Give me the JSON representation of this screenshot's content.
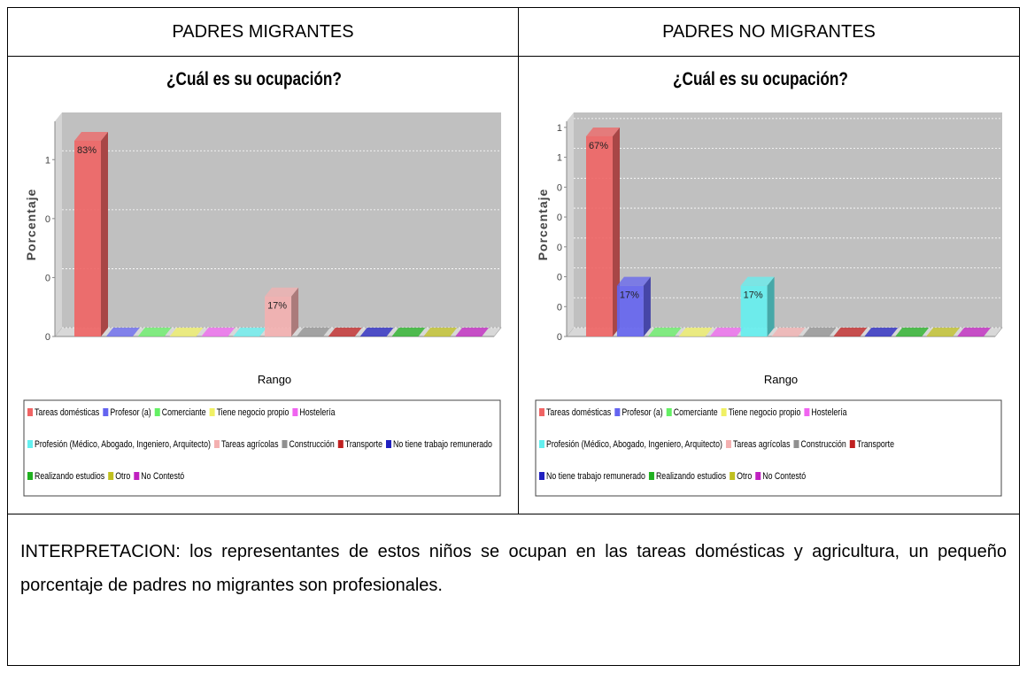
{
  "table": {
    "headers": [
      "PADRES MIGRANTES",
      "PADRES NO MIGRANTES"
    ],
    "interpretation": "INTERPRETACION: los representantes de estos niños se ocupan en las tareas domésticas y agricultura, un pequeño porcentaje de padres no migrantes son profesionales."
  },
  "chart_data": [
    {
      "type": "bar3d",
      "title": "¿Cuál es su ocupación?",
      "x_label": "Rango",
      "y_label": "Porcentaje",
      "series": [
        {
          "name": "Tareas domésticas",
          "color": "#f06464",
          "values": [
            0.83
          ],
          "value_labels": [
            "83%"
          ]
        },
        {
          "name": "Profesor (a)",
          "color": "#6464f0",
          "values": [
            0
          ]
        },
        {
          "name": "Comerciante",
          "color": "#64f064",
          "values": [
            0
          ]
        },
        {
          "name": "Tiene negocio propio",
          "color": "#f0f064",
          "values": [
            0
          ]
        },
        {
          "name": "Hostelería",
          "color": "#f064f0",
          "values": [
            0
          ]
        },
        {
          "name": "Profesión (Médico, Abogado, Ingeniero, Arquitecto)",
          "color": "#64f0f0",
          "values": [
            0
          ]
        },
        {
          "name": "Tareas agrícolas",
          "color": "#f4b0b0",
          "values": [
            0.17
          ],
          "value_labels": [
            "17%"
          ]
        },
        {
          "name": "Construcción",
          "color": "#909090",
          "values": [
            0
          ]
        },
        {
          "name": "Transporte",
          "color": "#c02020",
          "values": [
            0
          ]
        },
        {
          "name": "No tiene trabajo remunerado",
          "color": "#2020c0",
          "values": [
            0
          ]
        },
        {
          "name": "Realizando estudios",
          "color": "#20b020",
          "values": [
            0
          ]
        },
        {
          "name": "Otro",
          "color": "#c0c020",
          "values": [
            0
          ]
        },
        {
          "name": "No Contestó",
          "color": "#c020c0",
          "values": [
            0
          ]
        }
      ],
      "ylim": [
        0,
        0.95
      ],
      "yticks": [
        0,
        {
          "value": 0.25,
          "label": "0"
        },
        {
          "value": 0.5,
          "label": "0"
        },
        {
          "value": 0.75,
          "label": "1"
        }
      ],
      "grid": true,
      "legend": "bottom"
    },
    {
      "type": "bar3d",
      "title": "¿Cuál es su ocupación?",
      "x_label": "Rango",
      "y_label": "Porcentaje",
      "series": [
        {
          "name": "Tareas domésticas",
          "color": "#f06464",
          "values": [
            0.67
          ],
          "value_labels": [
            "67%"
          ]
        },
        {
          "name": "Profesor (a)",
          "color": "#6464f0",
          "values": [
            0.17
          ],
          "value_labels": [
            "17%"
          ]
        },
        {
          "name": "Comerciante",
          "color": "#64f064",
          "values": [
            0
          ]
        },
        {
          "name": "Tiene negocio propio",
          "color": "#f0f064",
          "values": [
            0
          ]
        },
        {
          "name": "Hostelería",
          "color": "#f064f0",
          "values": [
            0
          ]
        },
        {
          "name": "Profesión (Médico, Abogado, Ingeniero, Arquitecto)",
          "color": "#64f0f0",
          "values": [
            0.17
          ],
          "value_labels": [
            "17%"
          ]
        },
        {
          "name": "Tareas agrícolas",
          "color": "#f4b0b0",
          "values": [
            0
          ]
        },
        {
          "name": "Construcción",
          "color": "#909090",
          "values": [
            0
          ]
        },
        {
          "name": "Transporte",
          "color": "#c02020",
          "values": [
            0
          ]
        },
        {
          "name": "No tiene trabajo remunerado",
          "color": "#2020c0",
          "values": [
            0
          ]
        },
        {
          "name": "Realizando estudios",
          "color": "#20b020",
          "values": [
            0
          ]
        },
        {
          "name": "Otro",
          "color": "#c0c020",
          "values": [
            0
          ]
        },
        {
          "name": "No Contestó",
          "color": "#c020c0",
          "values": [
            0
          ]
        }
      ],
      "ylim": [
        0,
        0.75
      ],
      "yticks": [
        0,
        {
          "value": 0.1,
          "label": "0"
        },
        {
          "value": 0.2,
          "label": "0"
        },
        {
          "value": 0.3,
          "label": "0"
        },
        {
          "value": 0.4,
          "label": "0"
        },
        {
          "value": 0.5,
          "label": "0"
        },
        {
          "value": 0.6,
          "label": "1"
        },
        {
          "value": 0.7,
          "label": "1"
        }
      ],
      "grid": true,
      "legend": "bottom"
    }
  ]
}
